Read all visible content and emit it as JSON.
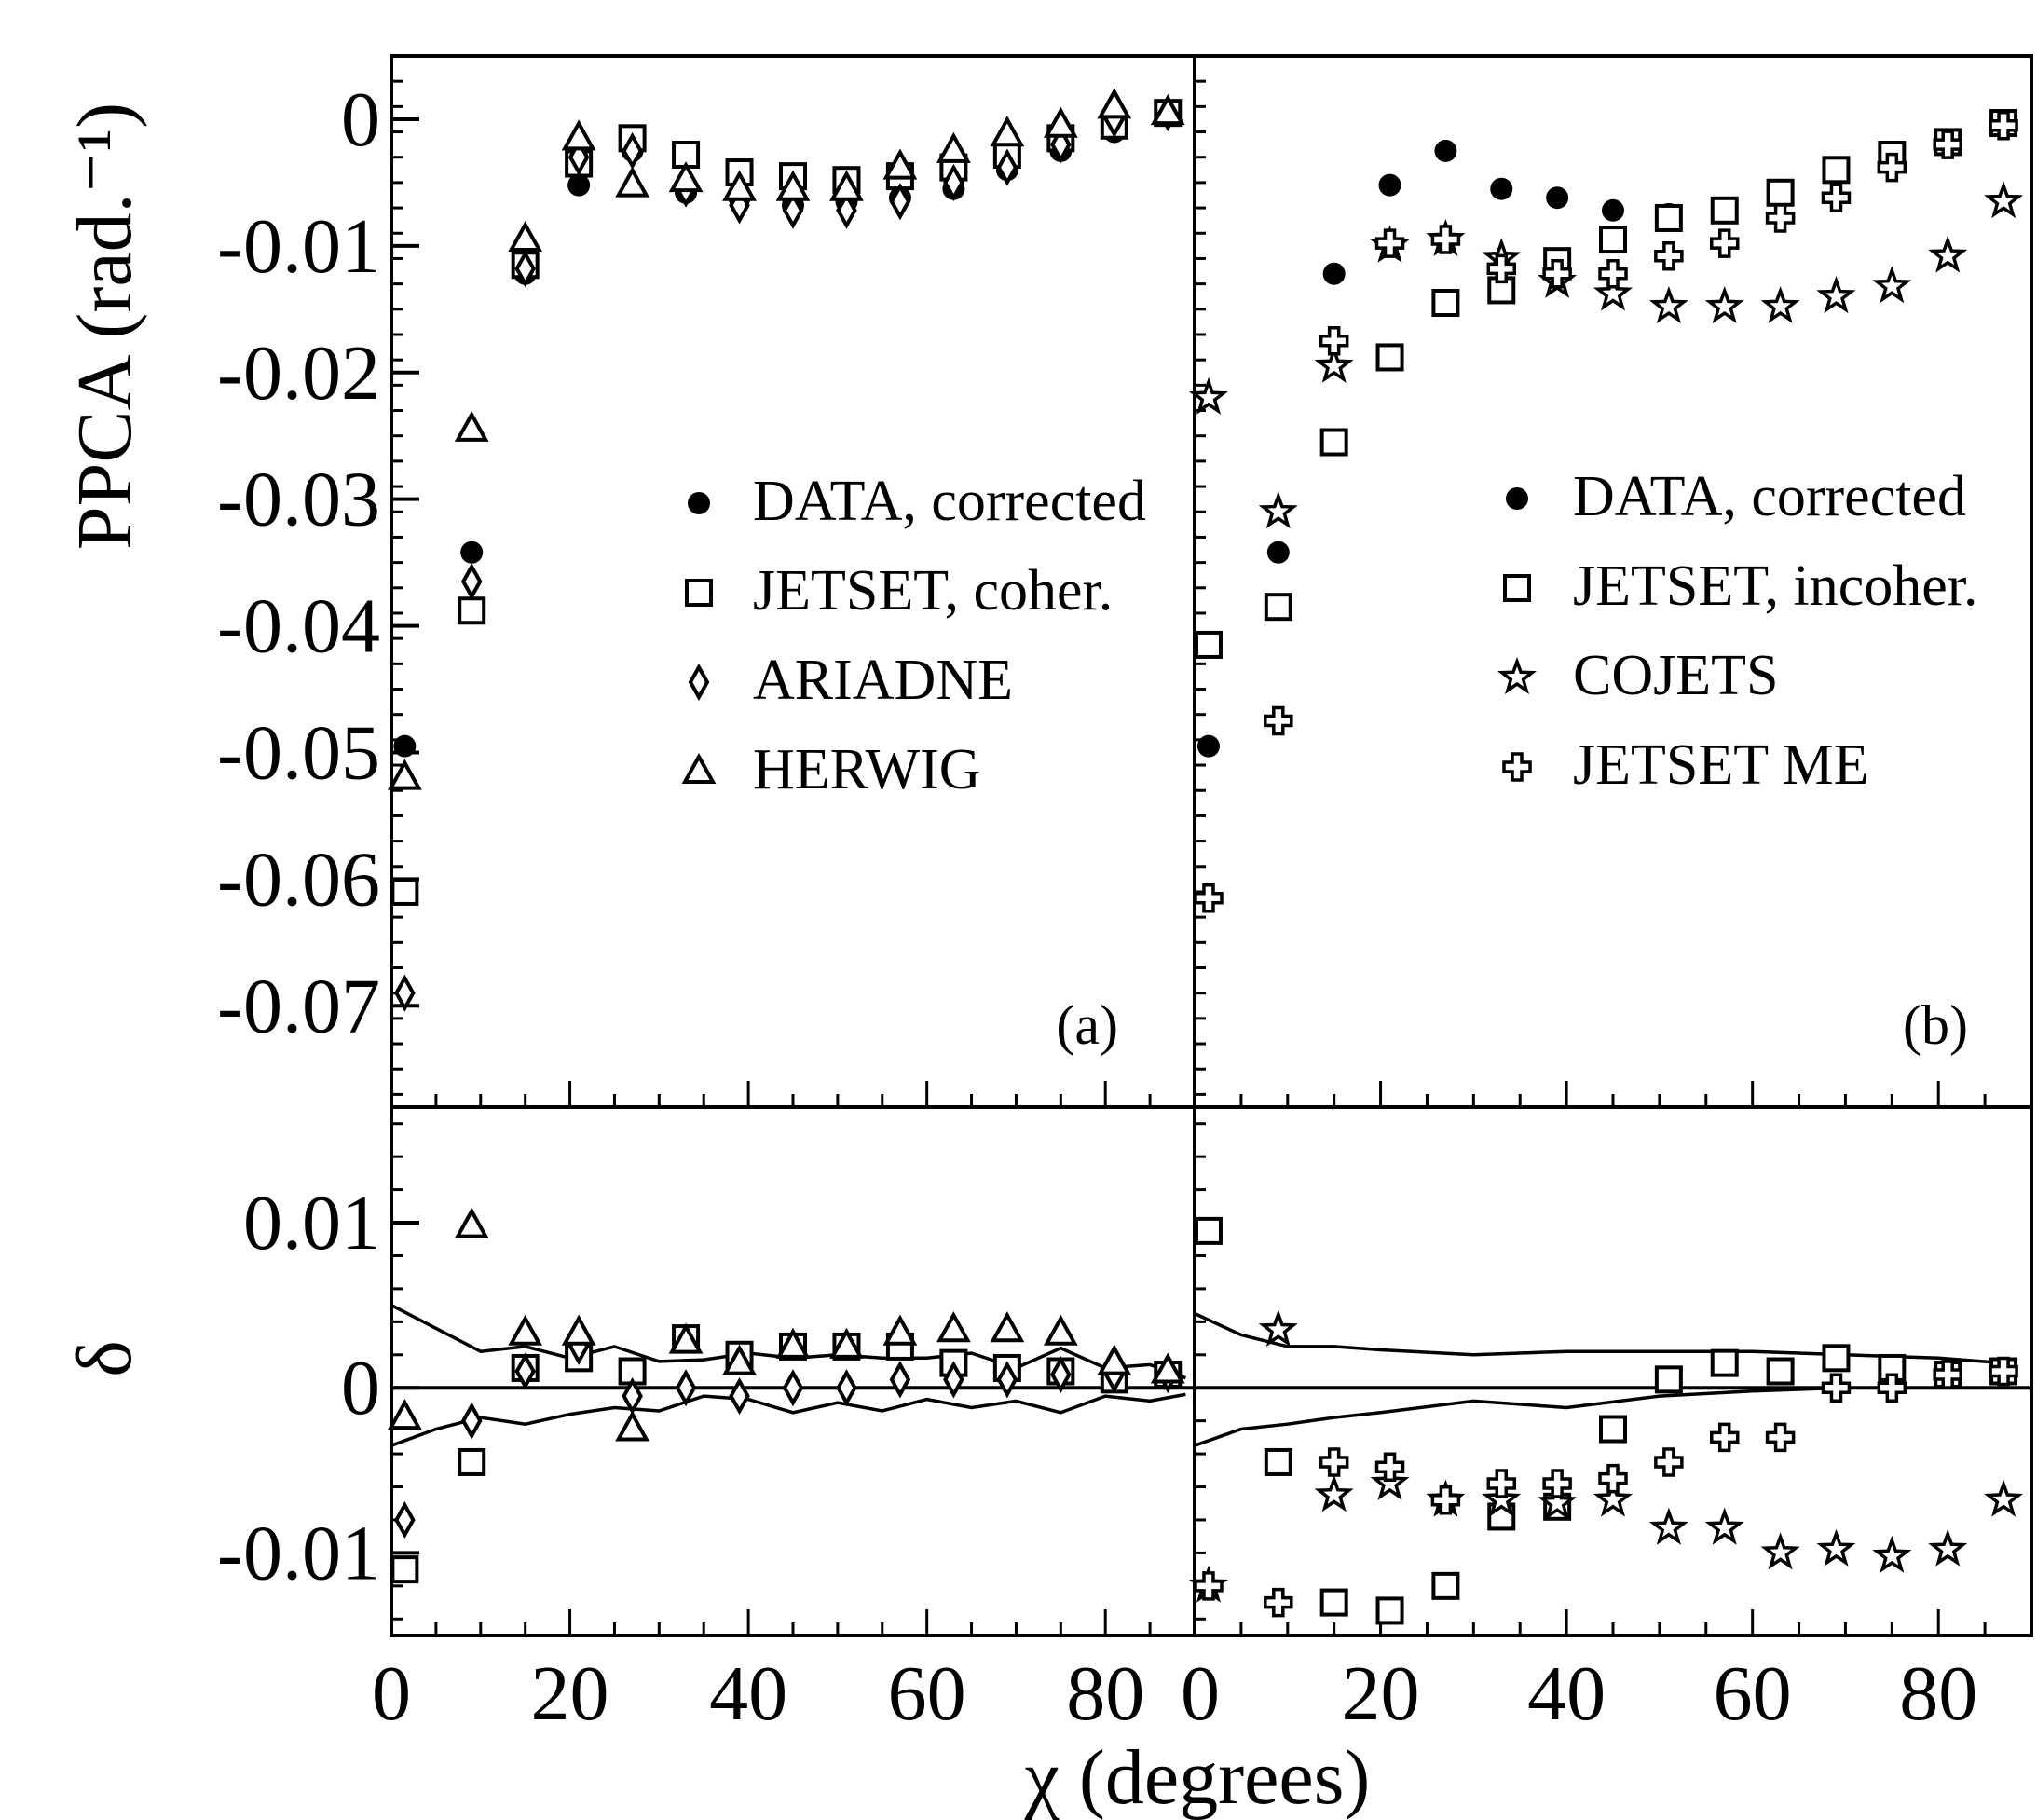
{
  "chart_data": [
    {
      "type": "scatter",
      "panel": "a",
      "panel_label": "(a)",
      "top": {
        "ylabel": "PPCA  (rad.⁻¹)",
        "ylim": [
          -0.078,
          0.005
        ],
        "yticks": [
          0,
          -0.01,
          -0.02,
          -0.03,
          -0.04,
          -0.05,
          -0.06,
          -0.07
        ],
        "ytick_labels": [
          "0",
          "-0.01",
          "-0.02",
          "-0.03",
          "-0.04",
          "-0.05",
          "-0.06",
          "-0.07"
        ],
        "legend_position": "center-right",
        "series": [
          {
            "name": "DATA, corrected",
            "marker": "dot",
            "x": [
              1.5,
              9,
              15,
              21,
              27,
              33,
              39,
              45,
              51,
              57,
              63,
              69,
              75,
              81,
              87
            ],
            "y": [
              -0.0495,
              -0.0342,
              -0.0122,
              -0.0052,
              -0.0025,
              -0.0058,
              -0.0062,
              -0.0068,
              -0.0065,
              -0.0062,
              -0.0055,
              -0.004,
              -0.0025,
              -0.001,
              0.0005
            ]
          },
          {
            "name": "JETSET, coher.",
            "marker": "square",
            "x": [
              1.5,
              9,
              15,
              21,
              27,
              33,
              39,
              45,
              51,
              57,
              63,
              69,
              75,
              81,
              87
            ],
            "y": [
              -0.061,
              -0.0388,
              -0.0115,
              -0.0035,
              -0.0015,
              -0.0028,
              -0.0042,
              -0.0045,
              -0.0048,
              -0.0045,
              -0.0038,
              -0.0028,
              -0.0015,
              -0.0005,
              0.0005
            ]
          },
          {
            "name": "ARIADNE",
            "marker": "diamond",
            "x": [
              1.5,
              9,
              15,
              21,
              27,
              33,
              39,
              45,
              51,
              57,
              63,
              69,
              75,
              81,
              87
            ],
            "y": [
              -0.069,
              -0.0365,
              -0.0118,
              -0.003,
              -0.0025,
              -0.0055,
              -0.0068,
              -0.0072,
              -0.0072,
              -0.0065,
              -0.005,
              -0.0038,
              -0.002,
              0.0,
              0.0005
            ]
          },
          {
            "name": "HERWIG",
            "marker": "triangle",
            "x": [
              1.5,
              9,
              15,
              21,
              27,
              33,
              39,
              45,
              51,
              57,
              63,
              69,
              75,
              81,
              87
            ],
            "y": [
              -0.052,
              -0.0245,
              -0.0095,
              -0.0015,
              -0.0052,
              -0.0048,
              -0.0055,
              -0.0055,
              -0.0055,
              -0.0038,
              -0.0025,
              -0.0012,
              -0.0005,
              0.001,
              0.0005
            ]
          }
        ]
      },
      "bottom": {
        "ylabel": "δ",
        "ylim": [
          -0.015,
          0.017
        ],
        "yticks": [
          0.01,
          0,
          -0.01
        ],
        "ytick_labels": [
          "0.01",
          "0",
          "-0.01"
        ],
        "series": [
          {
            "name": "JETSET, coher.",
            "marker": "square",
            "x": [
              1.5,
              9,
              15,
              21,
              27,
              33,
              39,
              45,
              51,
              57,
              63,
              69,
              75,
              81,
              87
            ],
            "y": [
              -0.011,
              -0.0045,
              0.0012,
              0.0018,
              0.001,
              0.003,
              0.002,
              0.0025,
              0.0025,
              0.0025,
              0.0015,
              0.0012,
              0.001,
              0.0005,
              0.0008
            ]
          },
          {
            "name": "ARIADNE",
            "marker": "diamond",
            "x": [
              1.5,
              9,
              15,
              21,
              27,
              33,
              39,
              45,
              51,
              57,
              63,
              69,
              75,
              81,
              87
            ],
            "y": [
              -0.008,
              -0.002,
              0.001,
              0.0025,
              -0.0005,
              0.0,
              -0.0005,
              0.0,
              0.0,
              0.0005,
              0.0005,
              0.0005,
              0.0008,
              0.0008,
              0.0008
            ]
          },
          {
            "name": "HERWIG",
            "marker": "triangle",
            "x": [
              1.5,
              9,
              15,
              21,
              27,
              33,
              39,
              45,
              51,
              57,
              63,
              69,
              75,
              81,
              87
            ],
            "y": [
              -0.0018,
              0.0098,
              0.0033,
              0.0033,
              -0.0025,
              0.0028,
              0.0015,
              0.0025,
              0.0025,
              0.0033,
              0.0035,
              0.0035,
              0.0033,
              0.0015,
              0.001
            ]
          }
        ],
        "band_upper": {
          "x": [
            0,
            5,
            10,
            15,
            20,
            25,
            30,
            35,
            40,
            45,
            50,
            55,
            60,
            65,
            70,
            75,
            80,
            85,
            89
          ],
          "y": [
            0.005,
            0.0036,
            0.0022,
            0.0025,
            0.0018,
            0.0025,
            0.0016,
            0.0017,
            0.0021,
            0.0018,
            0.002,
            0.0018,
            0.0018,
            0.0021,
            0.0012,
            0.0024,
            0.0012,
            0.0014,
            0.0006
          ]
        },
        "band_lower": {
          "x": [
            0,
            5,
            10,
            15,
            20,
            25,
            30,
            35,
            40,
            45,
            50,
            55,
            60,
            65,
            70,
            75,
            80,
            85,
            89
          ],
          "y": [
            -0.0035,
            -0.0025,
            -0.0018,
            -0.0022,
            -0.0016,
            -0.0012,
            -0.0014,
            -0.0005,
            -0.0007,
            -0.0015,
            -0.0009,
            -0.0014,
            -0.0007,
            -0.0012,
            -0.0008,
            -0.0015,
            -0.0005,
            -0.0008,
            -0.0004
          ]
        }
      }
    },
    {
      "type": "scatter",
      "panel": "b",
      "panel_label": "(b)",
      "top": {
        "ylim": [
          -0.078,
          0.005
        ],
        "legend_position": "center-right",
        "series": [
          {
            "name": "DATA, corrected",
            "marker": "dot",
            "x": [
              1.5,
              9,
              15,
              21,
              27,
              33,
              39,
              45,
              51,
              57,
              63,
              69,
              75,
              81,
              87
            ],
            "y": [
              -0.0495,
              -0.0342,
              -0.0122,
              -0.0052,
              -0.0025,
              -0.0055,
              -0.0062,
              -0.0072,
              -0.0075,
              -0.0072,
              -0.0058,
              -0.0042,
              -0.0028,
              -0.0018,
              -0.0003
            ]
          },
          {
            "name": "JETSET, incoher.",
            "marker": "square",
            "x": [
              1.5,
              9,
              15,
              21,
              27,
              33,
              39,
              45,
              51,
              57,
              63,
              69,
              75,
              81,
              87
            ],
            "y": [
              -0.0415,
              -0.0385,
              -0.0255,
              -0.0188,
              -0.0145,
              -0.0135,
              -0.0112,
              -0.0095,
              -0.0078,
              -0.0072,
              -0.0058,
              -0.004,
              -0.0028,
              -0.0018,
              -0.0003
            ]
          },
          {
            "name": "COJETS",
            "marker": "star",
            "x": [
              1.5,
              9,
              15,
              21,
              27,
              33,
              39,
              45,
              51,
              57,
              63,
              69,
              75,
              81,
              87
            ],
            "y": [
              -0.022,
              -0.031,
              -0.0195,
              -0.01,
              -0.0095,
              -0.011,
              -0.0128,
              -0.0138,
              -0.0148,
              -0.0148,
              -0.0148,
              -0.014,
              -0.0132,
              -0.0108,
              -0.0065
            ]
          },
          {
            "name": "JETSET ME",
            "marker": "cross",
            "x": [
              1.5,
              9,
              15,
              21,
              27,
              33,
              39,
              45,
              51,
              57,
              63,
              69,
              75,
              81,
              87
            ],
            "y": [
              -0.0615,
              -0.0475,
              -0.0175,
              -0.0098,
              -0.0095,
              -0.0118,
              -0.0122,
              -0.0122,
              -0.0108,
              -0.0098,
              -0.0078,
              -0.0062,
              -0.0038,
              -0.002,
              -0.0005
            ]
          }
        ]
      },
      "bottom": {
        "ylim": [
          -0.015,
          0.017
        ],
        "series": [
          {
            "name": "JETSET, incoher.",
            "marker": "square",
            "x": [
              1.5,
              9,
              15,
              21,
              27,
              33,
              39,
              45,
              51,
              57,
              63,
              69,
              75,
              81,
              87
            ],
            "y": [
              0.0095,
              -0.0045,
              -0.013,
              -0.0135,
              -0.012,
              -0.0078,
              -0.0072,
              -0.0025,
              0.0005,
              0.0015,
              0.001,
              0.0018,
              0.0012,
              0.0008,
              0.001
            ]
          },
          {
            "name": "COJETS",
            "marker": "star",
            "x": [
              1.5,
              9,
              15,
              21,
              27,
              33,
              39,
              45,
              51,
              57,
              63,
              69,
              75,
              81,
              87
            ],
            "y": [
              -0.012,
              0.0035,
              -0.0065,
              -0.0058,
              -0.0068,
              -0.0068,
              -0.007,
              -0.0068,
              -0.0085,
              -0.0085,
              -0.01,
              -0.0098,
              -0.0102,
              -0.0098,
              -0.0068
            ]
          },
          {
            "name": "JETSET ME",
            "marker": "cross",
            "x": [
              1.5,
              9,
              15,
              21,
              27,
              33,
              39,
              45,
              51,
              57,
              63,
              69,
              75,
              81,
              87
            ],
            "y": [
              -0.012,
              -0.013,
              -0.0045,
              -0.0048,
              -0.0068,
              -0.0058,
              -0.0058,
              -0.0055,
              -0.0045,
              -0.003,
              -0.003,
              0.0,
              0.0,
              0.0008,
              0.001
            ]
          }
        ],
        "band_upper": {
          "x": [
            0,
            5,
            10,
            15,
            20,
            30,
            40,
            50,
            60,
            70,
            80,
            87
          ],
          "y": [
            0.0045,
            0.0032,
            0.0025,
            0.0025,
            0.0023,
            0.002,
            0.0022,
            0.0022,
            0.0022,
            0.002,
            0.0018,
            0.0015
          ]
        },
        "band_lower": {
          "x": [
            0,
            5,
            10,
            15,
            20,
            30,
            40,
            50,
            60,
            70,
            80,
            87
          ],
          "y": [
            -0.0035,
            -0.0025,
            -0.0022,
            -0.0018,
            -0.0015,
            -0.0008,
            -0.0012,
            -0.0005,
            -0.0002,
            0.0,
            0.0,
            0.0
          ]
        }
      }
    }
  ],
  "shared": {
    "xlabel": "χ  (degrees)",
    "xlim": [
      0,
      90
    ],
    "xticks_a": [
      0,
      20,
      40,
      60,
      80
    ],
    "xtick_labels_a": [
      "0",
      "20",
      "40",
      "60",
      "80"
    ],
    "xticks_b": [
      0,
      20,
      40,
      60,
      80
    ],
    "xtick_labels_b": [
      "0",
      "20",
      "40",
      "60",
      "80"
    ]
  }
}
